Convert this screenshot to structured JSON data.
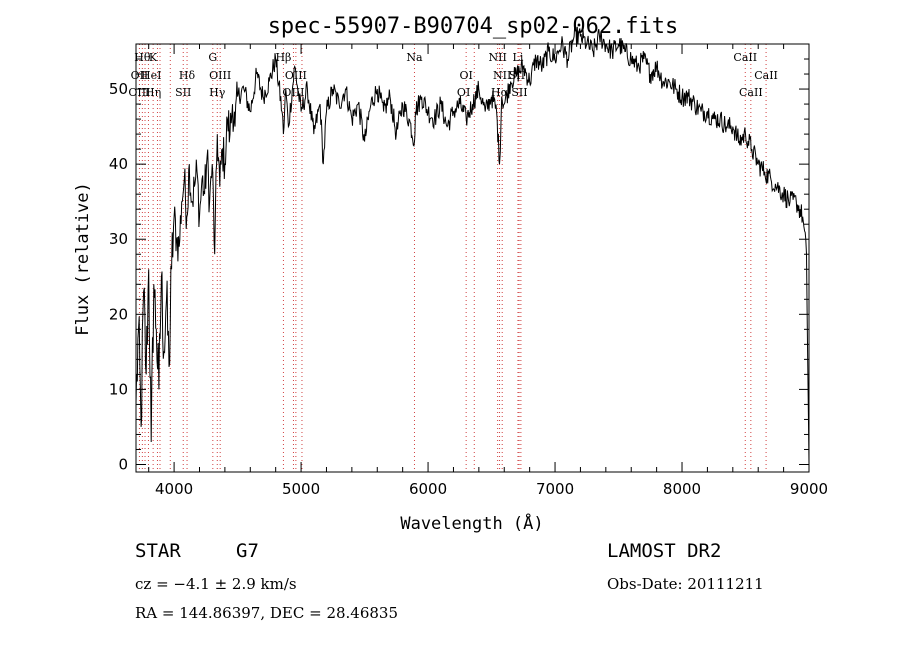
{
  "chart_data": {
    "type": "line",
    "title": "spec-55907-B90704_sp02-062.fits",
    "xlabel": "Wavelength (Å)",
    "ylabel": "Flux (relative)",
    "xlim": [
      3700,
      9000
    ],
    "ylim": [
      -1,
      56
    ],
    "x_ticks": [
      4000,
      5000,
      6000,
      7000,
      8000,
      9000
    ],
    "y_ticks": [
      0,
      10,
      20,
      30,
      40,
      50
    ],
    "grid": false,
    "series": [
      {
        "x": [
          3700,
          3720,
          3740,
          3760,
          3780,
          3800,
          3820,
          3840,
          3860,
          3880,
          3900,
          3920,
          3940,
          3960,
          3980,
          4000,
          4020,
          4040,
          4060,
          4080,
          4100,
          4120,
          4140,
          4160,
          4180,
          4200,
          4220,
          4240,
          4260,
          4280,
          4300,
          4320,
          4340,
          4360,
          4380,
          4400,
          4420,
          4440,
          4460,
          4480,
          4500,
          4550,
          4600,
          4650,
          4700,
          4750,
          4800,
          4850,
          4861,
          4880,
          4900,
          4950,
          5000,
          5050,
          5100,
          5150,
          5175,
          5200,
          5250,
          5300,
          5350,
          5400,
          5450,
          5500,
          5550,
          5600,
          5650,
          5700,
          5750,
          5800,
          5850,
          5893,
          5900,
          5950,
          6000,
          6050,
          6100,
          6150,
          6200,
          6250,
          6300,
          6350,
          6400,
          6450,
          6500,
          6540,
          6563,
          6580,
          6600,
          6650,
          6700,
          6750,
          6800,
          6850,
          6900,
          6950,
          7000,
          7050,
          7100,
          7150,
          7200,
          7250,
          7300,
          7350,
          7400,
          7450,
          7500,
          7550,
          7600,
          7650,
          7700,
          7750,
          7800,
          7850,
          7900,
          7950,
          8000,
          8050,
          8100,
          8150,
          8200,
          8250,
          8300,
          8350,
          8400,
          8450,
          8500,
          8550,
          8600,
          8650,
          8700,
          8750,
          8800,
          8850,
          8900,
          8950,
          8980,
          9000
        ],
        "y": [
          8,
          18,
          5,
          23,
          12,
          26,
          3,
          24,
          18,
          10,
          25,
          15,
          22,
          13,
          26,
          33,
          30,
          29,
          35,
          38,
          33,
          40,
          35,
          37,
          39,
          33,
          38,
          36,
          41,
          35,
          40,
          28,
          44,
          37,
          42,
          40,
          46,
          44,
          48,
          45,
          49,
          50,
          47,
          52,
          49,
          51,
          54,
          47,
          44,
          50,
          45,
          53,
          47,
          50,
          44,
          48,
          40,
          47,
          50,
          48,
          50,
          46,
          48,
          43,
          48,
          50,
          47,
          49,
          44,
          48,
          46,
          43,
          47,
          49,
          47,
          46,
          48,
          45,
          47,
          48,
          46,
          48,
          50,
          47,
          49,
          47,
          40,
          49,
          48,
          51,
          52,
          53,
          51,
          54,
          53,
          55,
          54,
          56,
          54,
          57,
          57,
          56,
          55,
          57,
          56,
          55,
          56,
          55,
          54,
          53,
          54,
          52,
          53,
          51,
          51,
          50,
          49,
          49,
          48,
          47,
          47,
          46,
          46,
          45,
          45,
          43,
          44,
          42,
          40,
          39,
          38,
          37,
          36,
          35,
          35,
          33,
          28,
          0
        ]
      }
    ],
    "line_markers": [
      {
        "wl": 3750,
        "label": "Hθ",
        "row": 0
      },
      {
        "wl": 3834,
        "label": "K",
        "row": 0
      },
      {
        "wl": 3727,
        "label": "OII",
        "row": 1
      },
      {
        "wl": 3820,
        "label": "HeI",
        "row": 1
      },
      {
        "wl": 3727,
        "label": "OIII",
        "row": 2
      },
      {
        "wl": 3835,
        "label": "Hη",
        "row": 2
      },
      {
        "wl": 4102,
        "label": "Hδ",
        "row": 1
      },
      {
        "wl": 4072,
        "label": "SII",
        "row": 2
      },
      {
        "wl": 4305,
        "label": "G",
        "row": 0
      },
      {
        "wl": 4363,
        "label": "OIII",
        "row": 1
      },
      {
        "wl": 4340,
        "label": "Hγ",
        "row": 2
      },
      {
        "wl": 4861,
        "label": "Hβ",
        "row": 0
      },
      {
        "wl": 4959,
        "label": "OIII",
        "row": 1
      },
      {
        "wl": 4940,
        "label": "OIII",
        "row": 2
      },
      {
        "wl": 5893,
        "label": "Na",
        "row": 0
      },
      {
        "wl": 6300,
        "label": "OI",
        "row": 1
      },
      {
        "wl": 6280,
        "label": "OI",
        "row": 2
      },
      {
        "wl": 6548,
        "label": "NII",
        "row": 0
      },
      {
        "wl": 6708,
        "label": "Li",
        "row": 0
      },
      {
        "wl": 6584,
        "label": "NII",
        "row": 1
      },
      {
        "wl": 6700,
        "label": "SII",
        "row": 1
      },
      {
        "wl": 6563,
        "label": "Hα",
        "row": 2
      },
      {
        "wl": 6720,
        "label": "SII",
        "row": 2
      },
      {
        "wl": 8498,
        "label": "CaII",
        "row": 0
      },
      {
        "wl": 8662,
        "label": "CaII",
        "row": 1
      },
      {
        "wl": 8542,
        "label": "CaII",
        "row": 2
      }
    ],
    "marker_lines_wl": [
      3727,
      3750,
      3771,
      3798,
      3835,
      3869,
      3889,
      3970,
      4072,
      4102,
      4305,
      4340,
      4363,
      4861,
      4940,
      4959,
      5007,
      5893,
      6300,
      6364,
      6548,
      6563,
      6584,
      6708,
      6717,
      6731,
      8498,
      8542,
      8662
    ],
    "line_colors": {
      "spectrum": "#000000",
      "markers": "#d04040",
      "axes": "#000000"
    }
  },
  "info": {
    "object_type": "STAR",
    "subclass": "G7",
    "survey": "LAMOST DR2",
    "cz": "cz = −4.1 ± 2.9 km/s",
    "obs_date": "Obs-Date: 20111211",
    "coords": "RA = 144.86397, DEC =  28.46835"
  }
}
